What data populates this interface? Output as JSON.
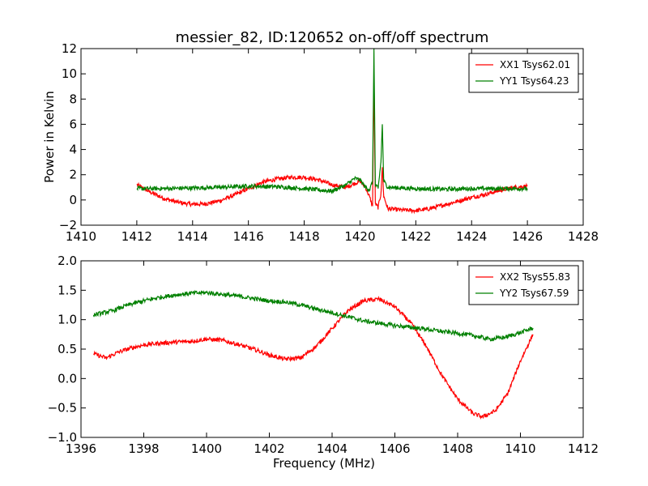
{
  "figure": {
    "title": "messier_82, ID:120652 on-off/off spectrum"
  },
  "chart_data": [
    {
      "type": "line",
      "title": "messier_82, ID:120652 on-off/off spectrum",
      "xlabel": "",
      "ylabel": "Power in Kelvin",
      "xlim": [
        1410,
        1428
      ],
      "ylim": [
        -2,
        12
      ],
      "xticks": [
        "1410",
        "1412",
        "1414",
        "1416",
        "1418",
        "1420",
        "1422",
        "1424",
        "1426",
        "1428"
      ],
      "yticks": [
        "−2",
        "0",
        "2",
        "4",
        "6",
        "8",
        "10",
        "12"
      ],
      "legend_position": "top-right",
      "grid": false,
      "series": [
        {
          "name": "XX1 Tsys62.01",
          "color": "#ff0000",
          "x": [
            1412.0,
            1412.5,
            1413.0,
            1413.5,
            1414.0,
            1414.5,
            1415.0,
            1415.5,
            1416.0,
            1416.5,
            1417.0,
            1417.5,
            1418.0,
            1418.5,
            1419.0,
            1419.5,
            1419.8,
            1420.0,
            1420.2,
            1420.35,
            1420.45,
            1420.5,
            1420.55,
            1420.65,
            1420.75,
            1420.8,
            1420.85,
            1421.0,
            1421.5,
            1422.0,
            1422.5,
            1423.0,
            1423.5,
            1424.0,
            1424.5,
            1425.0,
            1425.5,
            1426.0
          ],
          "y": [
            1.2,
            0.6,
            0.1,
            -0.2,
            -0.35,
            -0.3,
            -0.05,
            0.4,
            0.9,
            1.4,
            1.65,
            1.8,
            1.8,
            1.6,
            1.2,
            1.0,
            1.3,
            1.5,
            1.0,
            0.2,
            -0.5,
            10.0,
            -0.3,
            -0.6,
            0.5,
            2.6,
            0.3,
            -0.7,
            -0.8,
            -0.85,
            -0.7,
            -0.4,
            -0.1,
            0.2,
            0.45,
            0.75,
            1.0,
            1.1
          ]
        },
        {
          "name": "YY1 Tsys64.23",
          "color": "#008000",
          "x": [
            1412.0,
            1413.0,
            1414.0,
            1415.0,
            1416.0,
            1417.0,
            1418.0,
            1419.0,
            1419.5,
            1419.8,
            1420.0,
            1420.2,
            1420.35,
            1420.45,
            1420.5,
            1420.55,
            1420.65,
            1420.75,
            1420.8,
            1420.85,
            1421.0,
            1422.0,
            1423.0,
            1424.0,
            1425.0,
            1426.0
          ],
          "y": [
            0.9,
            0.9,
            0.95,
            1.0,
            1.1,
            1.05,
            0.9,
            0.7,
            1.2,
            1.7,
            1.6,
            1.0,
            0.8,
            1.5,
            12.0,
            1.2,
            0.9,
            3.0,
            6.0,
            1.5,
            1.0,
            0.9,
            0.85,
            0.9,
            0.9,
            0.9
          ]
        }
      ]
    },
    {
      "type": "line",
      "title": "",
      "xlabel": "Frequency (MHz)",
      "ylabel": "",
      "xlim": [
        1396,
        1412
      ],
      "ylim": [
        -1.0,
        2.0
      ],
      "xticks": [
        "1396",
        "1398",
        "1400",
        "1402",
        "1404",
        "1406",
        "1408",
        "1410",
        "1412"
      ],
      "yticks": [
        "−1.0",
        "−0.5",
        "0.0",
        "0.5",
        "1.0",
        "1.5",
        "2.0"
      ],
      "legend_position": "top-right",
      "grid": false,
      "series": [
        {
          "name": "XX2 Tsys55.83",
          "color": "#ff0000",
          "x": [
            1396.4,
            1396.8,
            1397.2,
            1397.6,
            1398.0,
            1398.5,
            1399.0,
            1399.5,
            1400.0,
            1400.5,
            1401.0,
            1401.5,
            1402.0,
            1402.5,
            1403.0,
            1403.5,
            1404.0,
            1404.5,
            1405.0,
            1405.5,
            1406.0,
            1406.5,
            1407.0,
            1407.5,
            1408.0,
            1408.5,
            1408.8,
            1409.2,
            1409.6,
            1410.0,
            1410.4
          ],
          "y": [
            0.42,
            0.35,
            0.45,
            0.52,
            0.57,
            0.6,
            0.62,
            0.63,
            0.67,
            0.65,
            0.58,
            0.5,
            0.4,
            0.33,
            0.35,
            0.55,
            0.85,
            1.15,
            1.32,
            1.35,
            1.22,
            0.95,
            0.55,
            0.05,
            -0.35,
            -0.6,
            -0.65,
            -0.55,
            -0.25,
            0.3,
            0.75
          ]
        },
        {
          "name": "YY2 Tsys67.59",
          "color": "#008000",
          "x": [
            1396.4,
            1397.0,
            1397.5,
            1398.0,
            1398.5,
            1399.0,
            1399.5,
            1400.0,
            1400.5,
            1401.0,
            1401.5,
            1402.0,
            1402.5,
            1403.0,
            1403.5,
            1404.0,
            1404.5,
            1405.0,
            1405.5,
            1406.0,
            1406.5,
            1407.0,
            1407.5,
            1408.0,
            1408.5,
            1409.0,
            1409.5,
            1410.0,
            1410.4
          ],
          "y": [
            1.08,
            1.15,
            1.25,
            1.32,
            1.38,
            1.42,
            1.45,
            1.46,
            1.43,
            1.4,
            1.36,
            1.32,
            1.3,
            1.25,
            1.18,
            1.12,
            1.05,
            0.98,
            0.94,
            0.9,
            0.87,
            0.84,
            0.8,
            0.77,
            0.73,
            0.67,
            0.7,
            0.78,
            0.86
          ]
        }
      ]
    }
  ]
}
